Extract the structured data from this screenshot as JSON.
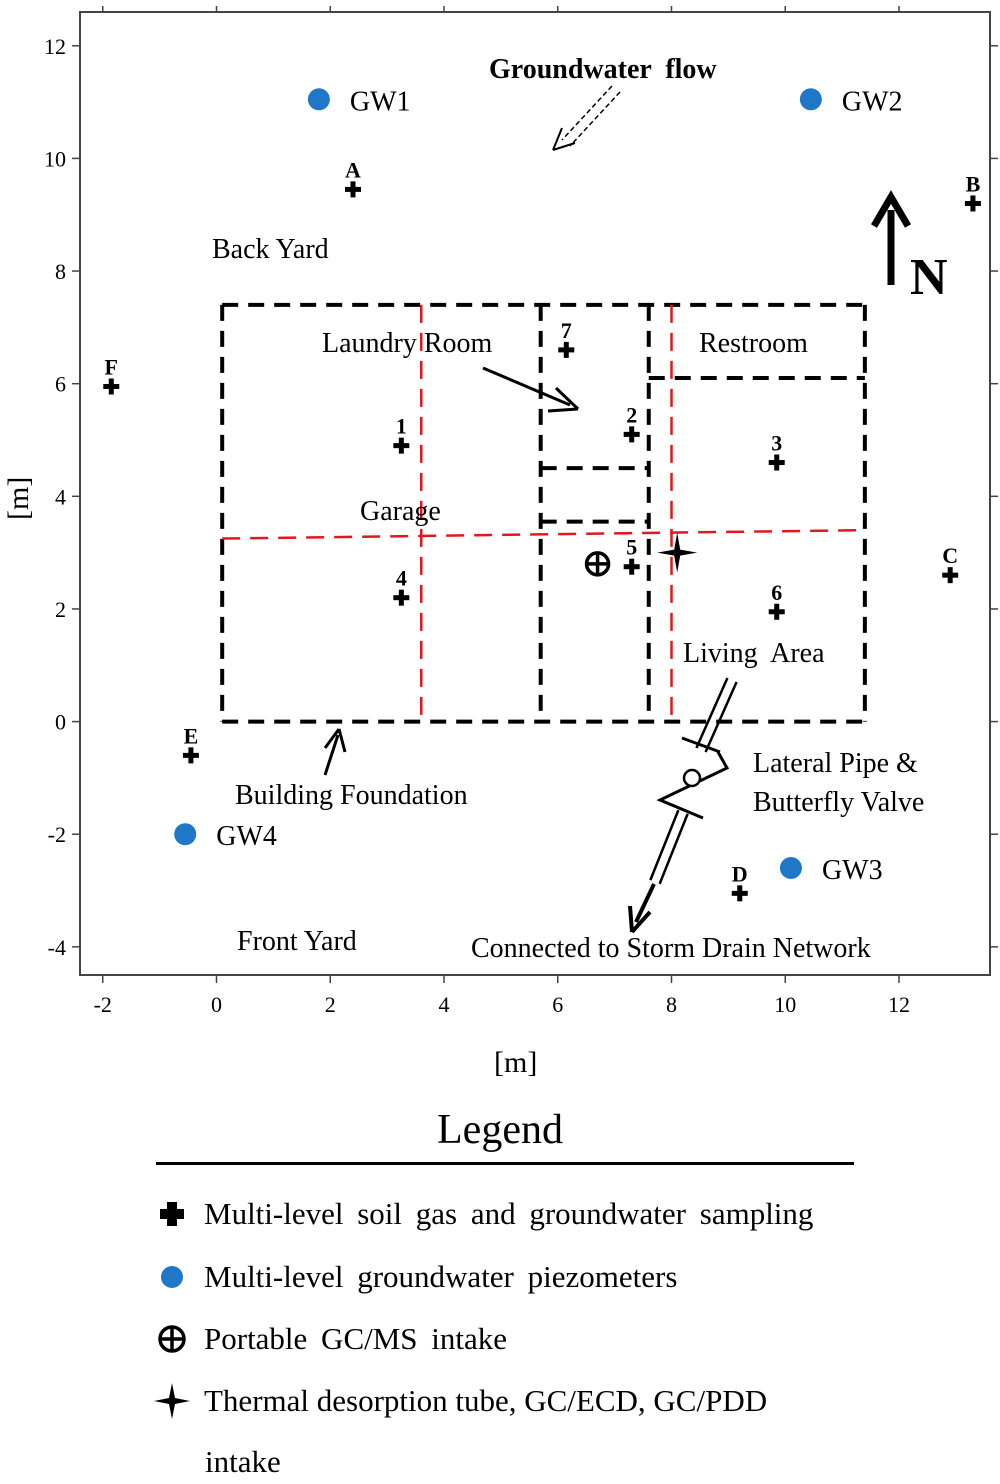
{
  "axes": {
    "x_label": "[m]",
    "y_label": "[m]",
    "x_ticks": [
      -2,
      0,
      2,
      4,
      6,
      8,
      10,
      12
    ],
    "y_ticks": [
      -4,
      -2,
      0,
      2,
      4,
      6,
      8,
      10,
      12
    ],
    "x_range": [
      -2.4,
      13.6
    ],
    "y_range": [
      -4.5,
      12.6
    ]
  },
  "labels": {
    "groundwater_flow": "Groundwater  flow",
    "north": "N",
    "back_yard": "Back Yard",
    "front_yard": "Front Yard",
    "laundry_room": "Laundry Room",
    "restroom": "Restroom",
    "garage": "Garage",
    "living_area": "Living  Area",
    "building_foundation": "Building Foundation",
    "lateral_pipe_line1": "Lateral Pipe &",
    "lateral_pipe_line2": "Butterfly Valve",
    "storm_drain": "Connected to Storm Drain Network"
  },
  "soil_gas_points": [
    {
      "id": "A",
      "x": 2.4,
      "y": 9.45
    },
    {
      "id": "B",
      "x": 13.3,
      "y": 9.2
    },
    {
      "id": "C",
      "x": 12.9,
      "y": 2.6
    },
    {
      "id": "D",
      "x": 9.2,
      "y": -3.05
    },
    {
      "id": "E",
      "x": -0.45,
      "y": -0.6
    },
    {
      "id": "F",
      "x": -1.85,
      "y": 5.95
    },
    {
      "id": "1",
      "x": 3.25,
      "y": 4.9
    },
    {
      "id": "2",
      "x": 7.3,
      "y": 5.1
    },
    {
      "id": "3",
      "x": 9.85,
      "y": 4.6
    },
    {
      "id": "4",
      "x": 3.25,
      "y": 2.2
    },
    {
      "id": "5",
      "x": 7.3,
      "y": 2.75
    },
    {
      "id": "6",
      "x": 9.85,
      "y": 1.95
    },
    {
      "id": "7",
      "x": 6.15,
      "y": 6.6
    }
  ],
  "piezometers": [
    {
      "id": "GW1",
      "x": 1.8,
      "y": 11.05
    },
    {
      "id": "GW2",
      "x": 10.45,
      "y": 11.05
    },
    {
      "id": "GW3",
      "x": 10.1,
      "y": -2.6
    },
    {
      "id": "GW4",
      "x": -0.55,
      "y": -2.0
    }
  ],
  "gcms_intake": {
    "x": 6.7,
    "y": 2.8
  },
  "thermal_tube_intake": {
    "x": 8.1,
    "y": 3.0
  },
  "legend": {
    "title": "Legend",
    "items": [
      {
        "symbol": "plus-icon",
        "text": "Multi-level soil gas and groundwater sampling"
      },
      {
        "symbol": "blue-dot-icon",
        "text": "Multi-level groundwater piezometers"
      },
      {
        "symbol": "circled-plus-icon",
        "text": "Portable GC/MS intake"
      },
      {
        "symbol": "four-point-star-icon",
        "text": "Thermal desorption tube, GC/ECD, GC/PDD"
      }
    ],
    "item4_line2": "intake"
  },
  "colors": {
    "piezometer_blue": "#1f77c8",
    "interior_wall_red": "#e0191e",
    "foundation_black": "#000000"
  }
}
